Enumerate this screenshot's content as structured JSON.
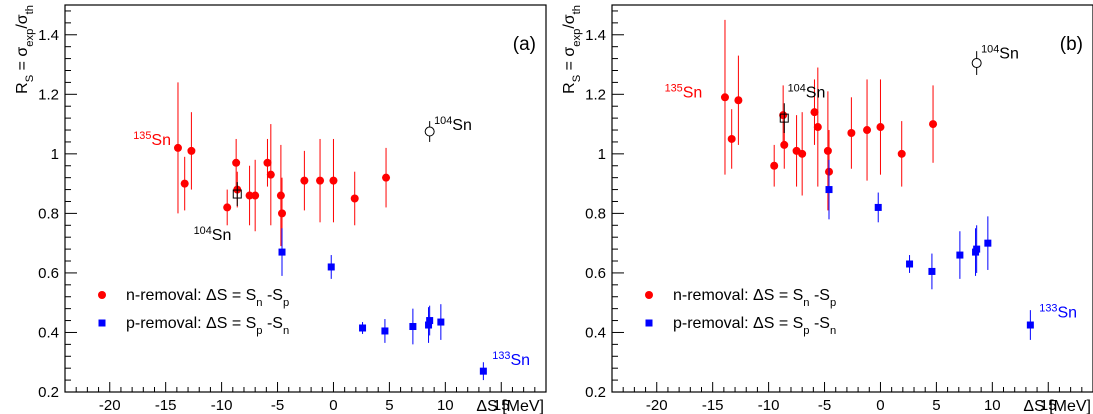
{
  "chart_data": [
    {
      "type": "scatter",
      "panel_label": "(a)",
      "xlabel": "ΔS [MeV]",
      "ylabel": "R_S = σ_exp/σ_th",
      "xlim": [
        -24,
        19
      ],
      "ylim": [
        0.2,
        1.5
      ],
      "x_ticks": [
        -20,
        -15,
        -10,
        -5,
        0,
        5,
        10,
        15
      ],
      "y_ticks": [
        0.2,
        0.4,
        0.6,
        0.8,
        1,
        1.2,
        1.4
      ],
      "grid": false,
      "legend_position": "bottom-left",
      "legend": [
        {
          "label": "n-removal: ΔS = S_n -S_p",
          "marker": "circle",
          "color": "#ff0000"
        },
        {
          "label": "p-removal: ΔS = S_p -S_n",
          "marker": "square",
          "color": "#0000ff"
        }
      ],
      "series": [
        {
          "marker": "circle",
          "color": "#ff0000",
          "points": [
            {
              "x": -13.9,
              "y": 1.02,
              "err": 0.22
            },
            {
              "x": -13.3,
              "y": 0.9,
              "err": 0.09
            },
            {
              "x": -12.7,
              "y": 1.01,
              "err": 0.13
            },
            {
              "x": -9.5,
              "y": 0.82,
              "err": 0.06
            },
            {
              "x": -8.7,
              "y": 0.97,
              "err": 0.08
            },
            {
              "x": -8.6,
              "y": 0.88,
              "err": 0.06
            },
            {
              "x": -7.5,
              "y": 0.86,
              "err": 0.1
            },
            {
              "x": -7.0,
              "y": 0.86,
              "err": 0.12
            },
            {
              "x": -5.9,
              "y": 0.97,
              "err": 0.08
            },
            {
              "x": -5.6,
              "y": 0.93,
              "err": 0.17
            },
            {
              "x": -4.7,
              "y": 0.86,
              "err": 0.17
            },
            {
              "x": -4.6,
              "y": 0.8,
              "err": 0.12
            },
            {
              "x": -2.6,
              "y": 0.91,
              "err": 0.1
            },
            {
              "x": -1.2,
              "y": 0.91,
              "err": 0.14
            },
            {
              "x": 0.0,
              "y": 0.91,
              "err": 0.14
            },
            {
              "x": 1.9,
              "y": 0.85,
              "err": 0.09
            },
            {
              "x": 4.7,
              "y": 0.92,
              "err": 0.1
            }
          ]
        },
        {
          "marker": "square",
          "color": "#0000ff",
          "points": [
            {
              "x": -4.6,
              "y": 0.67,
              "err": 0.08
            },
            {
              "x": -0.2,
              "y": 0.62,
              "err": 0.04
            },
            {
              "x": 2.6,
              "y": 0.415,
              "err": 0.02
            },
            {
              "x": 4.6,
              "y": 0.405,
              "err": 0.04
            },
            {
              "x": 7.1,
              "y": 0.42,
              "err": 0.06
            },
            {
              "x": 8.5,
              "y": 0.425,
              "err": 0.06
            },
            {
              "x": 8.6,
              "y": 0.44,
              "err": 0.05
            },
            {
              "x": 9.6,
              "y": 0.435,
              "err": 0.06
            },
            {
              "x": 13.4,
              "y": 0.27,
              "err": 0.03
            }
          ]
        },
        {
          "marker": "open-circle",
          "color": "#000000",
          "points": [
            {
              "x": 8.6,
              "y": 1.075,
              "err": 0.035
            }
          ]
        },
        {
          "marker": "open-square",
          "color": "#000000",
          "points": [
            {
              "x": -8.6,
              "y": 0.865,
              "err": 0.04
            }
          ]
        }
      ],
      "annotations": [
        {
          "mass": "135",
          "element": "Sn",
          "color": "#ff0000",
          "x": -17.9,
          "y": 1.03
        },
        {
          "mass": "104",
          "element": "Sn",
          "color": "#000000",
          "x": 9.0,
          "y": 1.08
        },
        {
          "mass": "104",
          "element": "Sn",
          "color": "#000000",
          "x": -12.5,
          "y": 0.71
        },
        {
          "mass": "133",
          "element": "Sn",
          "color": "#0000ff",
          "x": 14.2,
          "y": 0.29
        }
      ]
    },
    {
      "type": "scatter",
      "panel_label": "(b)",
      "xlabel": "ΔS [MeV]",
      "ylabel": "R_S = σ_exp/σ_th",
      "xlim": [
        -24,
        19
      ],
      "ylim": [
        0.2,
        1.5
      ],
      "x_ticks": [
        -20,
        -15,
        -10,
        -5,
        0,
        5,
        10,
        15
      ],
      "y_ticks": [
        0.2,
        0.4,
        0.6,
        0.8,
        1,
        1.2,
        1.4
      ],
      "grid": false,
      "legend_position": "bottom-left",
      "legend": [
        {
          "label": "n-removal: ΔS = S_n -S_p",
          "marker": "circle",
          "color": "#ff0000"
        },
        {
          "label": "p-removal: ΔS = S_p -S_n",
          "marker": "square",
          "color": "#0000ff"
        }
      ],
      "series": [
        {
          "marker": "circle",
          "color": "#ff0000",
          "points": [
            {
              "x": -13.9,
              "y": 1.19,
              "err": 0.26
            },
            {
              "x": -13.3,
              "y": 1.05,
              "err": 0.1
            },
            {
              "x": -12.7,
              "y": 1.18,
              "err": 0.15
            },
            {
              "x": -9.5,
              "y": 0.96,
              "err": 0.07
            },
            {
              "x": -8.7,
              "y": 1.13,
              "err": 0.1
            },
            {
              "x": -8.6,
              "y": 1.03,
              "err": 0.08
            },
            {
              "x": -7.5,
              "y": 1.01,
              "err": 0.12
            },
            {
              "x": -7.0,
              "y": 1.0,
              "err": 0.14
            },
            {
              "x": -5.9,
              "y": 1.14,
              "err": 0.11
            },
            {
              "x": -5.6,
              "y": 1.09,
              "err": 0.2
            },
            {
              "x": -4.7,
              "y": 1.01,
              "err": 0.2
            },
            {
              "x": -4.6,
              "y": 0.94,
              "err": 0.14
            },
            {
              "x": -2.6,
              "y": 1.07,
              "err": 0.12
            },
            {
              "x": -1.2,
              "y": 1.08,
              "err": 0.17
            },
            {
              "x": 0.0,
              "y": 1.09,
              "err": 0.16
            },
            {
              "x": 1.9,
              "y": 1.0,
              "err": 0.11
            },
            {
              "x": 4.7,
              "y": 1.1,
              "err": 0.13
            }
          ]
        },
        {
          "marker": "square",
          "color": "#0000ff",
          "points": [
            {
              "x": -4.6,
              "y": 0.88,
              "err": 0.1
            },
            {
              "x": -0.2,
              "y": 0.82,
              "err": 0.05
            },
            {
              "x": 2.6,
              "y": 0.63,
              "err": 0.03
            },
            {
              "x": 4.6,
              "y": 0.605,
              "err": 0.06
            },
            {
              "x": 7.1,
              "y": 0.66,
              "err": 0.08
            },
            {
              "x": 8.5,
              "y": 0.67,
              "err": 0.08
            },
            {
              "x": 8.6,
              "y": 0.68,
              "err": 0.08
            },
            {
              "x": 9.6,
              "y": 0.7,
              "err": 0.09
            },
            {
              "x": 13.4,
              "y": 0.425,
              "err": 0.05
            }
          ]
        },
        {
          "marker": "open-circle",
          "color": "#000000",
          "points": [
            {
              "x": 8.6,
              "y": 1.305,
              "err": 0.04
            }
          ]
        },
        {
          "marker": "open-square",
          "color": "#000000",
          "points": [
            {
              "x": -8.6,
              "y": 1.12,
              "err": 0.05
            }
          ]
        }
      ],
      "annotations": [
        {
          "mass": "135",
          "element": "Sn",
          "color": "#ff0000",
          "x": -19.3,
          "y": 1.19
        },
        {
          "mass": "104",
          "element": "Sn",
          "color": "#000000",
          "x": 9.0,
          "y": 1.32
        },
        {
          "mass": "104",
          "element": "Sn",
          "color": "#000000",
          "x": -8.3,
          "y": 1.19
        },
        {
          "mass": "133",
          "element": "Sn",
          "color": "#0000ff",
          "x": 14.2,
          "y": 0.45
        }
      ]
    }
  ]
}
